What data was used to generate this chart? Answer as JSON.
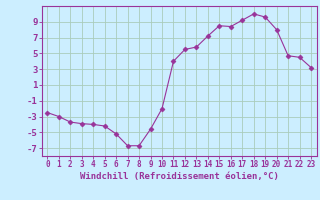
{
  "x": [
    0,
    1,
    2,
    3,
    4,
    5,
    6,
    7,
    8,
    9,
    10,
    11,
    12,
    13,
    14,
    15,
    16,
    17,
    18,
    19,
    20,
    21,
    22,
    23
  ],
  "y": [
    -2.5,
    -3.0,
    -3.7,
    -3.9,
    -4.0,
    -4.2,
    -5.2,
    -6.7,
    -6.7,
    -4.6,
    -2.0,
    4.0,
    5.5,
    5.8,
    7.2,
    8.5,
    8.4,
    9.2,
    10.0,
    9.6,
    8.0,
    4.7,
    4.5,
    3.2
  ],
  "line_color": "#993399",
  "marker": "D",
  "marker_size": 2.5,
  "bg_color": "#cceeff",
  "grid_color": "#aaccbb",
  "axis_color": "#993399",
  "xlabel": "Windchill (Refroidissement éolien,°C)",
  "xlim": [
    -0.5,
    23.5
  ],
  "ylim": [
    -8,
    11
  ],
  "yticks": [
    -7,
    -5,
    -3,
    -1,
    1,
    3,
    5,
    7,
    9
  ],
  "xtick_labels": [
    "0",
    "1",
    "2",
    "3",
    "4",
    "5",
    "6",
    "7",
    "8",
    "9",
    "10",
    "11",
    "12",
    "13",
    "14",
    "15",
    "16",
    "17",
    "18",
    "19",
    "20",
    "21",
    "22",
    "23"
  ],
  "tick_fontsize": 5.5,
  "xlabel_fontsize": 6.5,
  "ytick_fontsize": 6.5
}
